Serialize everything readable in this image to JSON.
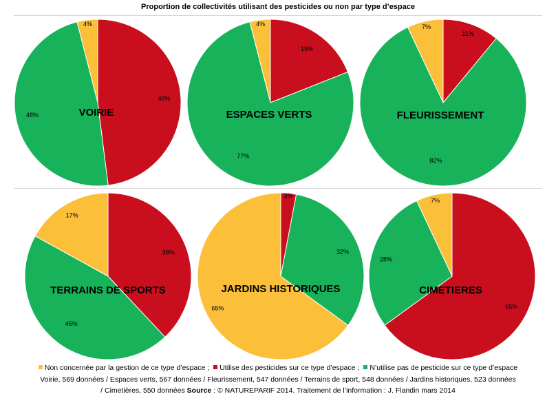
{
  "title": "Proportion de collectivités utilisant des pesticides ou non par type d’espace",
  "colors": {
    "non_concernee": "#FBBF3A",
    "utilise": "#C90F1E",
    "n_utilise_pas": "#17B25A"
  },
  "legend": {
    "items": [
      "Non concernée par la gestion de ce type d’espace",
      "Utilise des pesticides sur ce type d’espace",
      "N’utilise pas de pesticide sur ce type d’espace"
    ],
    "separator": ";"
  },
  "notes": {
    "line1": "Voirie, 569 données / Espaces verts, 567 données / Fleurissement, 547 données / Terrains de sport, 548 données / Jardins historiques, 523 données",
    "line2_a": "/ Cimetières, 550 données ",
    "line2_source": "Source",
    "line2_b": " : © NATUREPARIF 2014. Traitement de l’information : J. Flandin mars 2014"
  },
  "chart_data": [
    {
      "type": "pie",
      "label": "VOIRIE",
      "categories": [
        "Non concernée",
        "Utilise des pesticides",
        "N’utilise pas de pesticide"
      ],
      "values": [
        4,
        48,
        48
      ],
      "data_labels": [
        "4%",
        "48%",
        "48%"
      ]
    },
    {
      "type": "pie",
      "label": "ESPACES VERTS",
      "categories": [
        "Non concernée",
        "Utilise des pesticides",
        "N’utilise pas de pesticide"
      ],
      "values": [
        4,
        19,
        77
      ],
      "data_labels": [
        "4%",
        "19%",
        "77%"
      ]
    },
    {
      "type": "pie",
      "label": "FLEURISSEMENT",
      "categories": [
        "Non concernée",
        "Utilise des pesticides",
        "N’utilise pas de pesticide"
      ],
      "values": [
        7,
        11,
        82
      ],
      "data_labels": [
        "7%",
        "11%",
        "82%"
      ]
    },
    {
      "type": "pie",
      "label": "TERRAINS DE SPORTS",
      "categories": [
        "Non concernée",
        "Utilise des pesticides",
        "N’utilise pas de pesticide"
      ],
      "values": [
        17,
        38,
        45
      ],
      "data_labels": [
        "17%",
        "38%",
        "45%"
      ]
    },
    {
      "type": "pie",
      "label": "JARDINS HISTORIQUES",
      "categories": [
        "Non concernée",
        "Utilise des pesticides",
        "N’utilise pas de pesticide"
      ],
      "values": [
        65,
        3,
        32
      ],
      "data_labels": [
        "65%",
        "3%",
        "32%"
      ]
    },
    {
      "type": "pie",
      "label": "CIMETIERES",
      "categories": [
        "Non concernée",
        "Utilise des pesticides",
        "N’utilise pas de pesticide"
      ],
      "values": [
        7,
        65,
        28
      ],
      "data_labels": [
        "7%",
        "65%",
        "28%"
      ]
    }
  ]
}
